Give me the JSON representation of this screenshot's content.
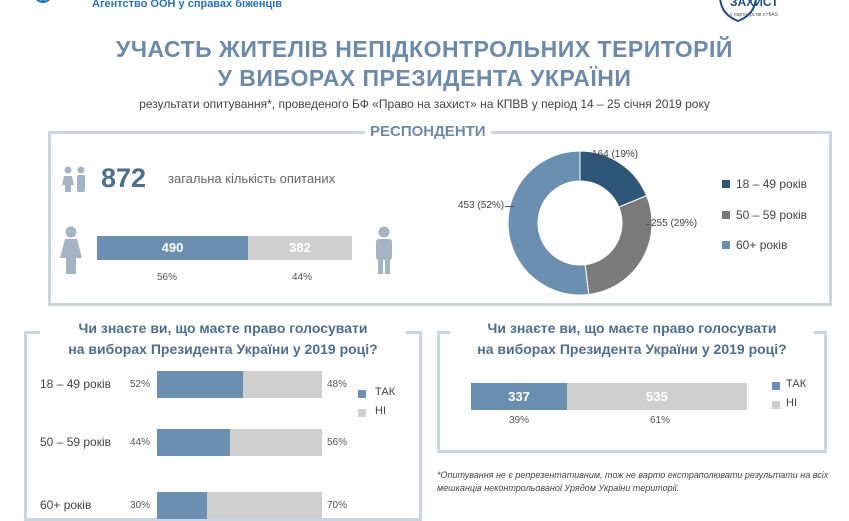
{
  "header": {
    "org_name": "Агентство ООН у справах біженців",
    "partner_logo_text": "ЗАХИСТ",
    "partner_sub": "у партнерстві з HIAS",
    "title_line1": "УЧАСТЬ ЖИТЕЛІВ НЕПІДКОНТРОЛЬНИХ ТЕРИТОРІЙ",
    "title_line2": "У ВИБОРАХ ПРЕЗИДЕНТА УКРАЇНИ",
    "subtitle": "результати опитування*, проведеного БФ «Право на захист» на КПВВ  у період 14 – 25 січня 2019 року"
  },
  "respondents": {
    "section_label": "РЕСПОНДЕНТИ",
    "total": "872",
    "total_label": "загальна кількість опитаних",
    "female_count": "490",
    "male_count": "382",
    "female_pct": "56%",
    "male_pct": "44%"
  },
  "question": {
    "line1": "Чи знаєте ви, що маєте право голосувати",
    "line2": "на виборах Президента України у 2019 році?"
  },
  "overall": {
    "yes_count": "337",
    "no_count": "535",
    "yes_pct": "39%",
    "no_pct": "61%"
  },
  "legend": {
    "yes": "ТАК",
    "no": "НІ"
  },
  "colors": {
    "dark": "#2f5677",
    "mid": "#7a7a7a",
    "light": "#6b8fb1",
    "grey": "#cfcfcf",
    "title": "#6d8aa8"
  },
  "footnote": "*Опитування не є репрезентативним, тож не варто екстраполювати результати на всіх мешканців неконтрольованої Урядом України території.",
  "chart_data": [
    {
      "type": "pie",
      "name": "age-donut",
      "categories": [
        "18 – 49 років",
        "50 – 59 років",
        "60+ років"
      ],
      "values": [
        164,
        255,
        453
      ],
      "labels": [
        "164 (19%)",
        "255 (29%)",
        "453 (52%)"
      ],
      "colors": [
        "#2f5677",
        "#7a7a7a",
        "#6b8fb1"
      ]
    },
    {
      "type": "bar",
      "name": "awareness-by-age",
      "categories": [
        "18 – 49 років",
        "50 – 59 років",
        "60+ років"
      ],
      "series": [
        {
          "name": "ТАК",
          "values": [
            52,
            44,
            30
          ],
          "labels": [
            "52%",
            "44%",
            "30%"
          ]
        },
        {
          "name": "НІ",
          "values": [
            48,
            56,
            70
          ],
          "labels": [
            "48%",
            "56%",
            "70%"
          ]
        }
      ]
    }
  ]
}
